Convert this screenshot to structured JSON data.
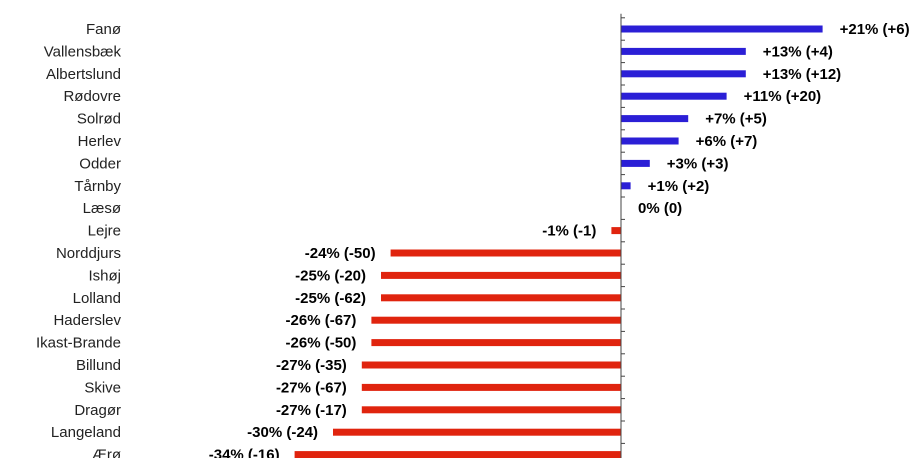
{
  "chart_data": {
    "type": "bar",
    "orientation": "horizontal",
    "categories": [
      "Fanø",
      "Vallensbæk",
      "Albertslund",
      "Rødovre",
      "Solrød",
      "Herlev",
      "Odder",
      "Tårnby",
      "Læsø",
      "Lejre",
      "Norddjurs",
      "Ishøj",
      "Lolland",
      "Haderslev",
      "Ikast-Brande",
      "Billund",
      "Skive",
      "Dragør",
      "Langeland",
      "Ærø"
    ],
    "values": [
      21,
      13,
      13,
      11,
      7,
      6,
      3,
      1,
      0,
      -1,
      -24,
      -25,
      -25,
      -26,
      -26,
      -27,
      -27,
      -27,
      -30,
      -34
    ],
    "data_labels": [
      "+21% (+6)",
      "+13% (+4)",
      "+13% (+12)",
      "+11% (+20)",
      "+7% (+5)",
      "+6% (+7)",
      "+3% (+3)",
      "+1% (+2)",
      "0% (0)",
      "-1% (-1)",
      "-24% (-50)",
      "-25% (-20)",
      "-25% (-62)",
      "-26% (-67)",
      "-26% (-50)",
      "-27% (-35)",
      "-27% (-67)",
      "-27% (-17)",
      "-30% (-24)",
      "-34% (-16)"
    ],
    "positive_color": "#2b1fd6",
    "negative_color": "#e0240e",
    "title": "",
    "xlabel": "",
    "ylabel": "",
    "grid": false,
    "legend": "none"
  }
}
